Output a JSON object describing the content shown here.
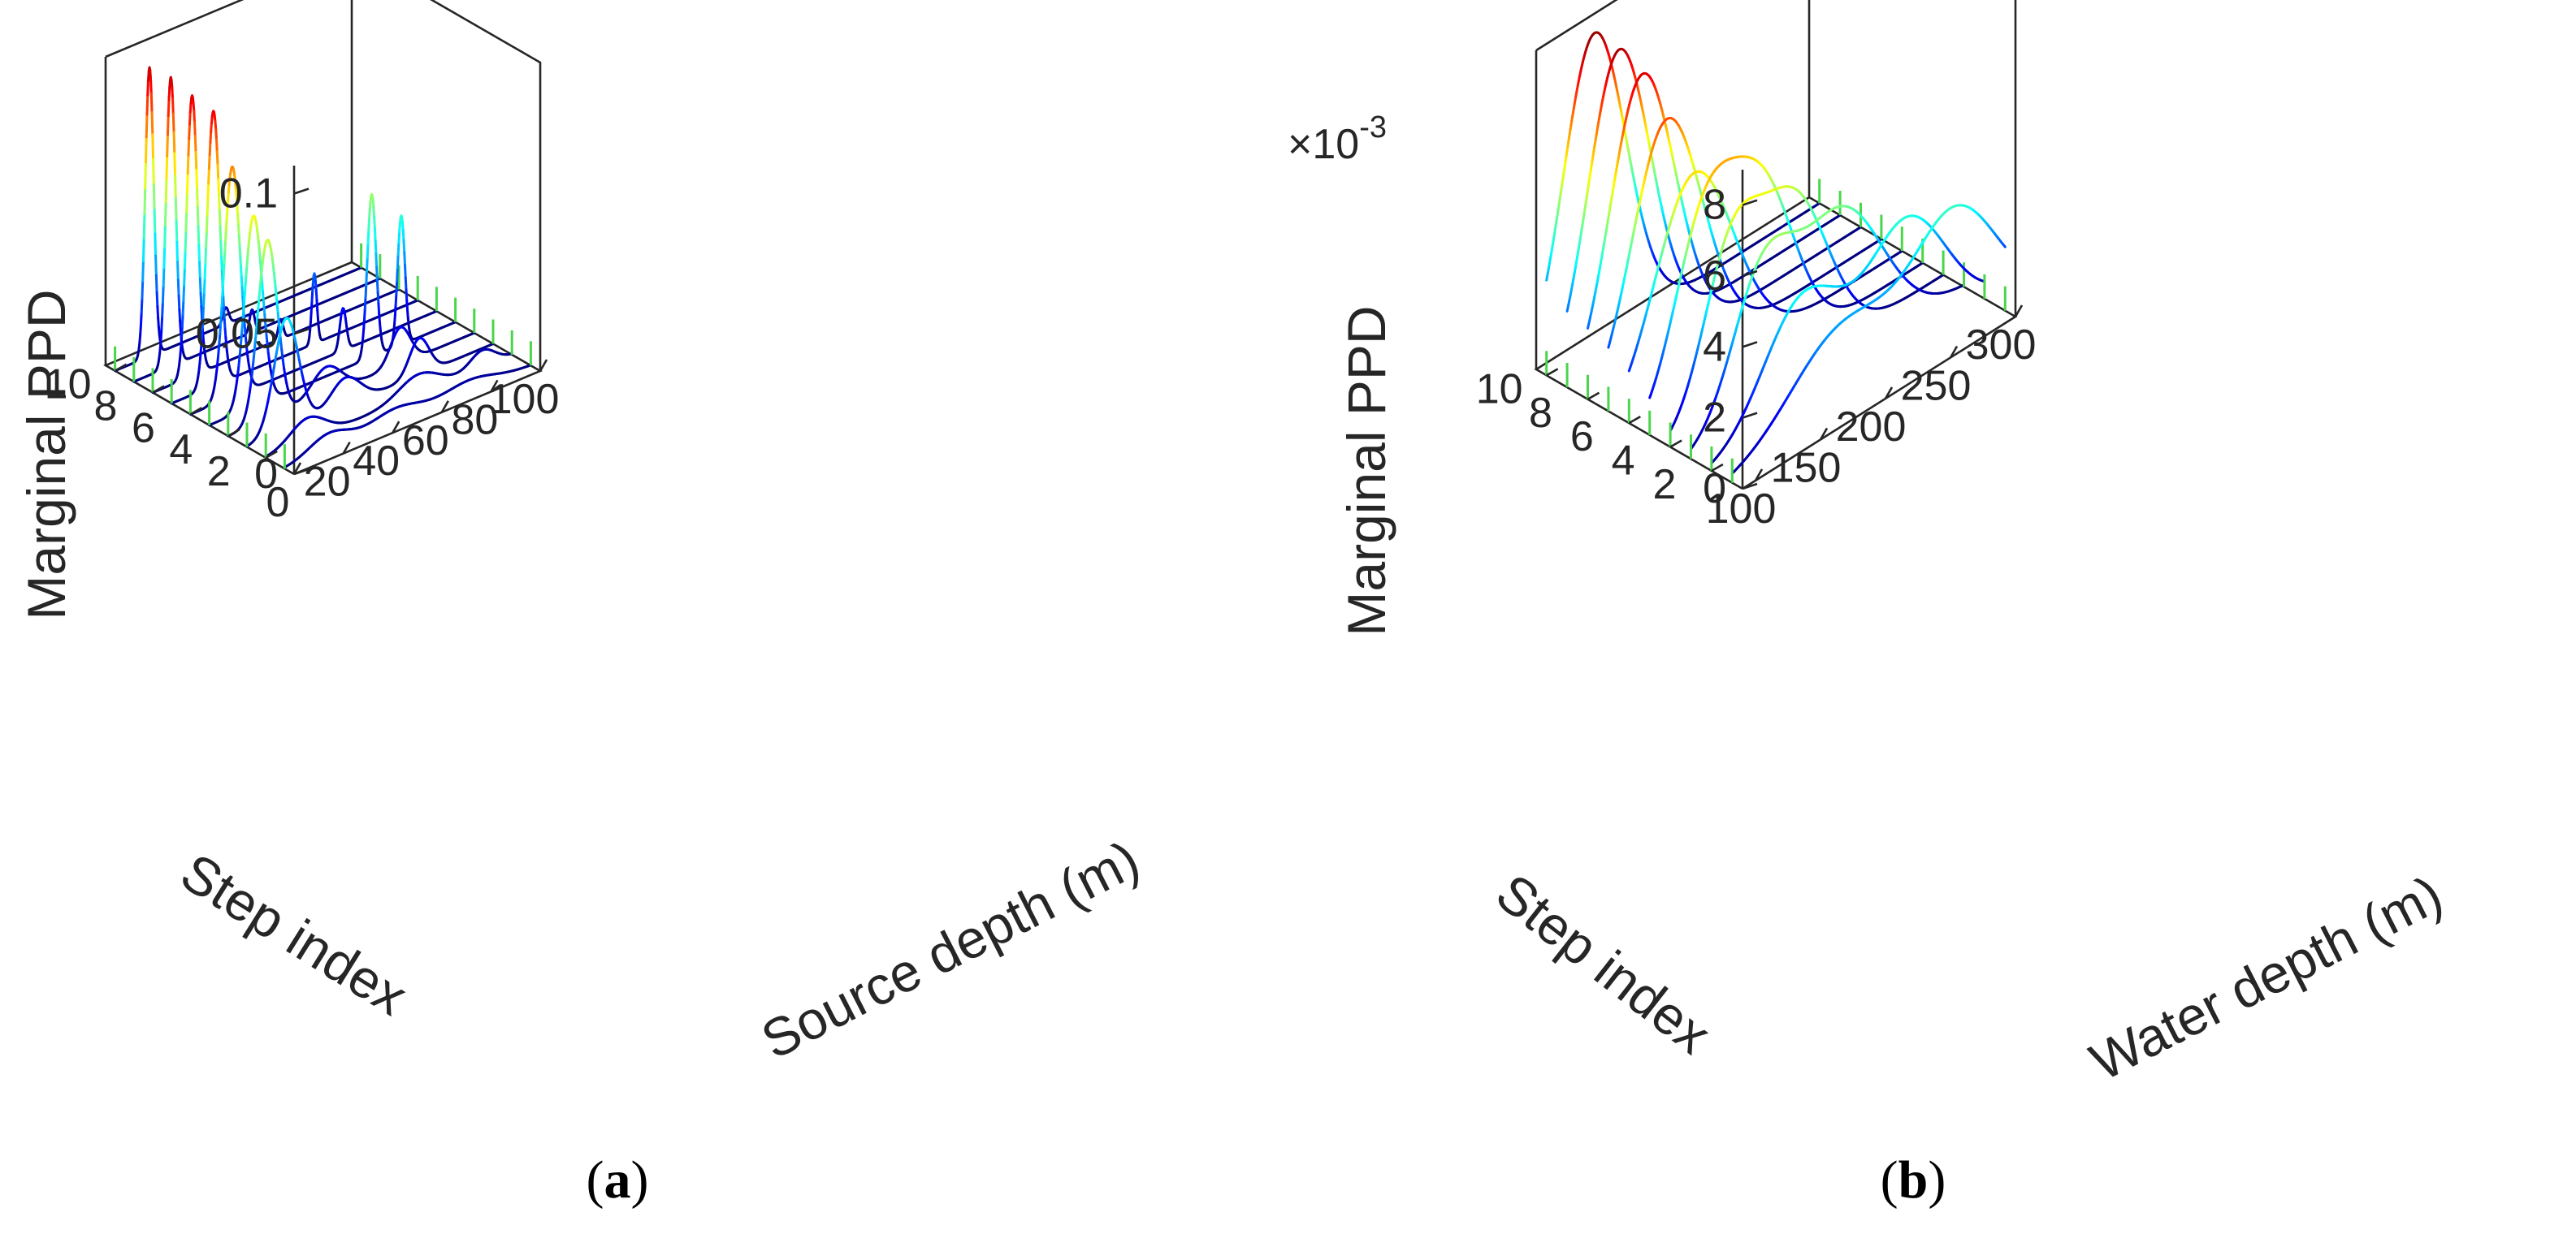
{
  "chart_data": [
    {
      "type": "3d-line (waterfall)",
      "caption_letter": "a",
      "ylabel": "Marginal PPD",
      "xlabel": "Source depth (m)",
      "step_label": "Step index",
      "zlim": [
        0,
        0.11
      ],
      "z_ticks": [
        "0",
        "0.05",
        "0.1"
      ],
      "x_ticks": [
        "0",
        "20",
        "40",
        "60",
        "80",
        "100"
      ],
      "step_ticks": [
        "2",
        "4",
        "6",
        "8",
        "10"
      ],
      "xlim": [
        0,
        100
      ],
      "steps": [
        1,
        2,
        3,
        4,
        5,
        6,
        7,
        8,
        9,
        10
      ],
      "series": [
        {
          "step": 1,
          "peaks": [
            {
              "x": 18,
              "height": 0.006,
              "width": 8
            },
            {
              "x": 45,
              "height": 0.005,
              "width": 10
            },
            {
              "x": 75,
              "height": 0.004,
              "width": 10
            }
          ]
        },
        {
          "step": 2,
          "peaks": [
            {
              "x": 17,
              "height": 0.008,
              "width": 7
            },
            {
              "x": 62,
              "height": 0.007,
              "width": 8
            },
            {
              "x": 88,
              "height": 0.006,
              "width": 5
            }
          ]
        },
        {
          "step": 3,
          "peaks": [
            {
              "x": 16,
              "height": 0.04,
              "width": 5
            },
            {
              "x": 40,
              "height": 0.01,
              "width": 6
            },
            {
              "x": 70,
              "height": 0.013,
              "width": 4
            }
          ]
        },
        {
          "step": 4,
          "peaks": [
            {
              "x": 16,
              "height": 0.064,
              "width": 4
            },
            {
              "x": 40,
              "height": 0.01,
              "width": 6
            },
            {
              "x": 70,
              "height": 0.013,
              "width": 4
            }
          ]
        },
        {
          "step": 5,
          "peaks": [
            {
              "x": 18,
              "height": 0.068,
              "width": 3.6
            },
            {
              "x": 66,
              "height": 0.058,
              "width": 1.8
            },
            {
              "x": 78,
              "height": 0.046,
              "width": 1.5
            }
          ]
        },
        {
          "step": 6,
          "peaks": [
            {
              "x": 17,
              "height": 0.082,
              "width": 3.2
            },
            {
              "x": 62,
              "height": 0.015,
              "width": 1.3
            }
          ]
        },
        {
          "step": 7,
          "peaks": [
            {
              "x": 17,
              "height": 0.098,
              "width": 2.6
            },
            {
              "x": 58,
              "height": 0.025,
              "width": 1.0
            }
          ]
        },
        {
          "step": 8,
          "peaks": [
            {
              "x": 16,
              "height": 0.1,
              "width": 2.2
            },
            {
              "x": 52,
              "height": 0.007,
              "width": 1.0
            }
          ]
        },
        {
          "step": 9,
          "peaks": [
            {
              "x": 15,
              "height": 0.103,
              "width": 1.9
            },
            {
              "x": 48,
              "height": 0.008,
              "width": 1.0
            }
          ]
        },
        {
          "step": 10,
          "peaks": [
            {
              "x": 14,
              "height": 0.103,
              "width": 1.7
            },
            {
              "x": 45,
              "height": 0.006,
              "width": 1.2
            }
          ]
        }
      ]
    },
    {
      "type": "3d-line (waterfall)",
      "caption_letter": "b",
      "ylabel": "Marginal PPD",
      "xlabel": "Water depth (m)",
      "step_label": "Step index",
      "z_exponent": "×10",
      "z_exponent_power": "-3",
      "zlim": [
        0,
        9
      ],
      "z_ticks": [
        "0",
        "2",
        "4",
        "6",
        "8"
      ],
      "x_ticks": [
        "100",
        "150",
        "200",
        "250",
        "300"
      ],
      "step_ticks": [
        "2",
        "4",
        "6",
        "8",
        "10"
      ],
      "xlim": [
        90,
        300
      ],
      "steps": [
        1,
        2,
        3,
        4,
        5,
        6,
        7,
        8,
        9,
        10
      ],
      "series": [
        {
          "step": 1,
          "peaks": [
            {
              "x": 175,
              "height": 2.5,
              "width": 40
            },
            {
              "x": 262,
              "height": 3.6,
              "width": 32
            }
          ]
        },
        {
          "step": 2,
          "peaks": [
            {
              "x": 160,
              "height": 3.3,
              "width": 30
            },
            {
              "x": 240,
              "height": 3.6,
              "width": 30
            }
          ]
        },
        {
          "step": 3,
          "peaks": [
            {
              "x": 145,
              "height": 3.8,
              "width": 24
            },
            {
              "x": 205,
              "height": 4.3,
              "width": 32
            }
          ]
        },
        {
          "step": 4,
          "peaks": [
            {
              "x": 137,
              "height": 4.4,
              "width": 22
            },
            {
              "x": 185,
              "height": 4.7,
              "width": 26
            }
          ]
        },
        {
          "step": 5,
          "peaks": [
            {
              "x": 133,
              "height": 5.2,
              "width": 24
            },
            {
              "x": 178,
              "height": 4.6,
              "width": 24
            }
          ]
        },
        {
          "step": 6,
          "peaks": [
            {
              "x": 140,
              "height": 5.9,
              "width": 30
            }
          ]
        },
        {
          "step": 7,
          "peaks": [
            {
              "x": 135,
              "height": 7.2,
              "width": 27
            }
          ]
        },
        {
          "step": 8,
          "peaks": [
            {
              "x": 132,
              "height": 8.2,
              "width": 25
            }
          ]
        },
        {
          "step": 9,
          "peaks": [
            {
              "x": 130,
              "height": 8.6,
              "width": 24
            }
          ]
        },
        {
          "step": 10,
          "peaks": [
            {
              "x": 127,
              "height": 8.8,
              "width": 24
            }
          ]
        }
      ]
    }
  ]
}
